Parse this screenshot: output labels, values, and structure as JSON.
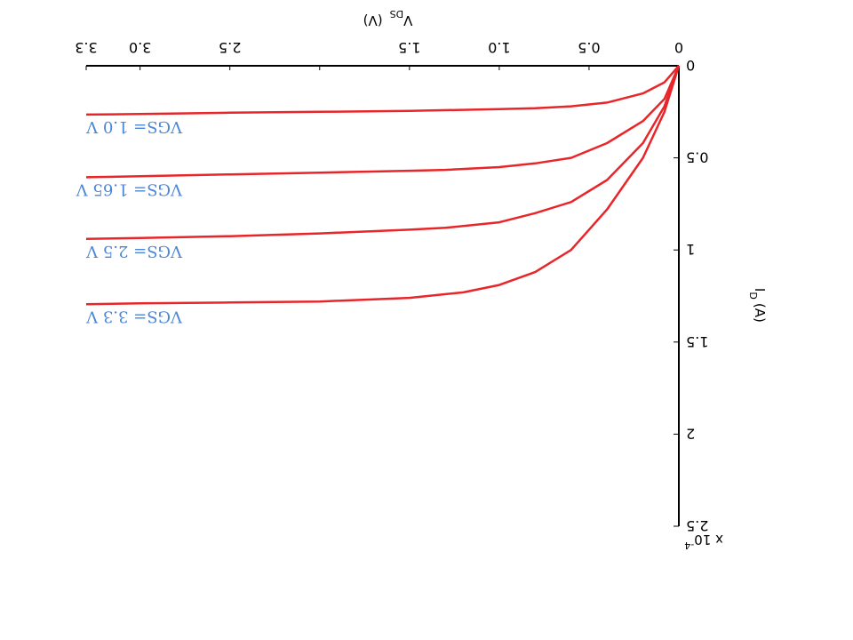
{
  "chart_data": {
    "type": "line",
    "title": "",
    "xlabel": {
      "main": "V",
      "sub": "DS",
      "unit": "(V)"
    },
    "ylabel": {
      "main": "I",
      "sub": "D",
      "unit": "(A)"
    },
    "y_exponent": {
      "base": "x 10",
      "power": "-4"
    },
    "xlim": [
      0,
      3.3
    ],
    "ylim": [
      0,
      2.5
    ],
    "x_tick_labels": [
      {
        "value": 0,
        "label": "0"
      },
      {
        "value": 0.5,
        "label": "0.5"
      },
      {
        "value": 1.0,
        "label": "1.0"
      },
      {
        "value": 1.5,
        "label": "1.5"
      },
      {
        "value": 2.5,
        "label": "2.5"
      },
      {
        "value": 3.0,
        "label": "3.0"
      },
      {
        "value": 3.3,
        "label": "3.3"
      }
    ],
    "x_tick_marks": [
      0,
      0.5,
      1.0,
      1.5,
      2.0,
      2.5,
      3.0,
      3.3
    ],
    "y_tick_labels": [
      {
        "value": 0,
        "label": "0"
      },
      {
        "value": 0.5,
        "label": "0.5"
      },
      {
        "value": 1.0,
        "label": "1"
      },
      {
        "value": 1.5,
        "label": "1.5"
      },
      {
        "value": 2.0,
        "label": "2"
      },
      {
        "value": 2.5,
        "label": "2.5"
      }
    ],
    "colors": {
      "series": "#e8262a",
      "annotation": "#4a86d8",
      "axis": "#000000"
    },
    "series": [
      {
        "name": "VGS= 1.0 V",
        "x": [
          0,
          0.08,
          0.2,
          0.4,
          0.6,
          0.8,
          1.0,
          1.5,
          2.0,
          2.5,
          3.0,
          3.3
        ],
        "y": [
          0,
          0.09,
          0.15,
          0.2,
          0.22,
          0.23,
          0.235,
          0.245,
          0.25,
          0.255,
          0.262,
          0.265
        ]
      },
      {
        "name": "VGS= 1.65 V",
        "x": [
          0,
          0.08,
          0.2,
          0.4,
          0.6,
          0.8,
          1.0,
          1.3,
          1.5,
          2.0,
          2.5,
          3.0,
          3.3
        ],
        "y": [
          0,
          0.18,
          0.3,
          0.42,
          0.5,
          0.53,
          0.55,
          0.565,
          0.57,
          0.58,
          0.59,
          0.6,
          0.605
        ]
      },
      {
        "name": "VGS= 2.5 V",
        "x": [
          0,
          0.08,
          0.2,
          0.4,
          0.6,
          0.8,
          1.0,
          1.3,
          1.5,
          2.0,
          2.5,
          3.0,
          3.3
        ],
        "y": [
          0,
          0.22,
          0.42,
          0.62,
          0.74,
          0.8,
          0.85,
          0.88,
          0.89,
          0.91,
          0.925,
          0.935,
          0.94
        ]
      },
      {
        "name": "VGS= 3.3 V",
        "x": [
          0,
          0.08,
          0.2,
          0.4,
          0.6,
          0.8,
          1.0,
          1.2,
          1.5,
          2.0,
          2.5,
          3.0,
          3.3
        ],
        "y": [
          0,
          0.25,
          0.5,
          0.78,
          1.0,
          1.12,
          1.19,
          1.23,
          1.26,
          1.28,
          1.285,
          1.29,
          1.295
        ]
      }
    ]
  }
}
